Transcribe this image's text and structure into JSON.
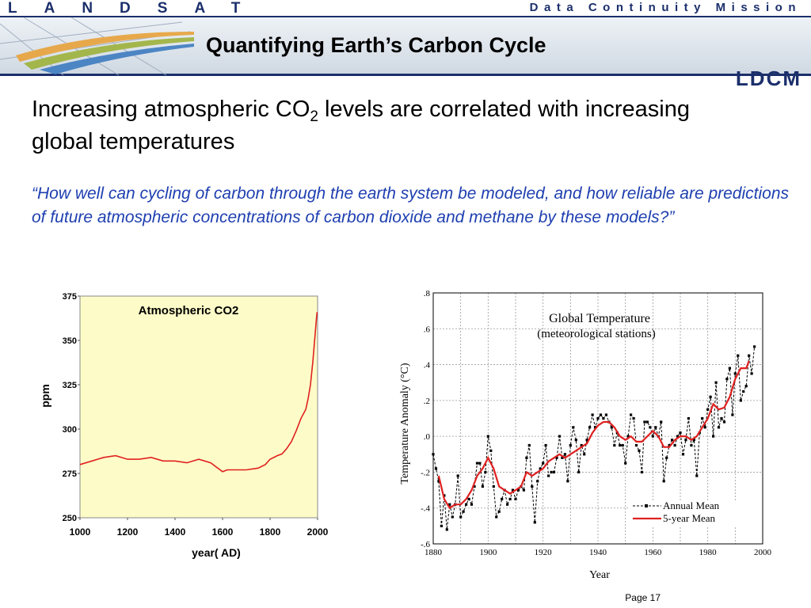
{
  "header": {
    "brand_left": "LANDSAT",
    "brand_right": "Data Continuity Mission",
    "title": "Quantifying Earth’s Carbon Cycle",
    "logo_text": "LDCM",
    "colors": {
      "navy": "#1b2f6b",
      "title_bar": "#dfe6ee",
      "swoosh_orange": "#e8a23a",
      "swoosh_green": "#9db23b",
      "swoosh_blue": "#3e7cc0"
    }
  },
  "body": {
    "headline_part1": "Increasing atmospheric CO",
    "headline_sub": "2",
    "headline_part2": " levels are correlated with increasing global temperatures",
    "quote": "“How well can cycling of carbon through the earth system be modeled, and how reliable are predictions of future atmospheric concentrations of carbon dioxide and methane by these models?”",
    "quote_color": "#1e3fb0"
  },
  "chart_data": [
    {
      "type": "line",
      "title": "Atmospheric CO2",
      "xlabel": "year( AD)",
      "ylabel": "ppm",
      "xlim": [
        1000,
        2000
      ],
      "ylim": [
        250,
        375
      ],
      "xticks": [
        "1000",
        "1200",
        "1400",
        "1600",
        "1800",
        "2000"
      ],
      "yticks": [
        "250",
        "275",
        "300",
        "325",
        "350",
        "375"
      ],
      "background": "#fdfcc8",
      "grid": false,
      "series": [
        {
          "color": "#e02020",
          "x": [
            1000,
            1050,
            1100,
            1150,
            1200,
            1250,
            1300,
            1350,
            1400,
            1450,
            1500,
            1550,
            1600,
            1620,
            1650,
            1700,
            1750,
            1780,
            1800,
            1830,
            1850,
            1870,
            1890,
            1910,
            1930,
            1950,
            1960,
            1970,
            1980,
            1985,
            1990,
            1995,
            1998
          ],
          "y": [
            280,
            282,
            284,
            285,
            283,
            283,
            284,
            282,
            282,
            281,
            283,
            281,
            276,
            277,
            277,
            277,
            278,
            280,
            283,
            285,
            286,
            289,
            293,
            299,
            306,
            311,
            317,
            325,
            338,
            346,
            354,
            362,
            366
          ]
        }
      ]
    },
    {
      "type": "line",
      "title": "Global Temperature",
      "subtitle": "(meteorological stations)",
      "xlabel": "Year",
      "ylabel": "Temperature Anomaly (°C)",
      "xlim": [
        1880,
        2000
      ],
      "ylim": [
        -0.6,
        0.8
      ],
      "xticks": [
        "1880",
        "1900",
        "1920",
        "1940",
        "1960",
        "1980",
        "2000"
      ],
      "yticks": [
        "-.6",
        "-.4",
        "-.2",
        ".0",
        ".2",
        ".4",
        ".6",
        ".8"
      ],
      "grid": true,
      "legend": "bottom-right",
      "series": [
        {
          "name": "Annual Mean",
          "style": "dashed-with-markers",
          "color": "#000000",
          "x": [
            1880,
            1881,
            1882,
            1883,
            1884,
            1885,
            1886,
            1887,
            1888,
            1889,
            1890,
            1891,
            1892,
            1893,
            1894,
            1895,
            1896,
            1897,
            1898,
            1899,
            1900,
            1901,
            1902,
            1903,
            1904,
            1905,
            1906,
            1907,
            1908,
            1909,
            1910,
            1911,
            1912,
            1913,
            1914,
            1915,
            1916,
            1917,
            1918,
            1919,
            1920,
            1921,
            1922,
            1923,
            1924,
            1925,
            1926,
            1927,
            1928,
            1929,
            1930,
            1931,
            1932,
            1933,
            1934,
            1935,
            1936,
            1937,
            1938,
            1939,
            1940,
            1941,
            1942,
            1943,
            1944,
            1945,
            1946,
            1947,
            1948,
            1949,
            1950,
            1951,
            1952,
            1953,
            1954,
            1955,
            1956,
            1957,
            1958,
            1959,
            1960,
            1961,
            1962,
            1963,
            1964,
            1965,
            1966,
            1967,
            1968,
            1969,
            1970,
            1971,
            1972,
            1973,
            1974,
            1975,
            1976,
            1977,
            1978,
            1979,
            1980,
            1981,
            1982,
            1983,
            1984,
            1985,
            1986,
            1987,
            1988,
            1989,
            1990,
            1991,
            1992,
            1993,
            1994,
            1995,
            1996,
            1997
          ],
          "y": [
            -0.1,
            -0.18,
            -0.25,
            -0.5,
            -0.33,
            -0.52,
            -0.38,
            -0.45,
            -0.38,
            -0.22,
            -0.45,
            -0.42,
            -0.38,
            -0.35,
            -0.38,
            -0.28,
            -0.15,
            -0.15,
            -0.28,
            -0.2,
            0.0,
            -0.08,
            -0.28,
            -0.45,
            -0.42,
            -0.35,
            -0.3,
            -0.38,
            -0.35,
            -0.3,
            -0.35,
            -0.3,
            -0.28,
            -0.3,
            -0.12,
            -0.05,
            -0.28,
            -0.48,
            -0.25,
            -0.18,
            -0.15,
            -0.05,
            -0.22,
            -0.2,
            -0.2,
            -0.12,
            0.0,
            -0.12,
            -0.1,
            -0.25,
            -0.05,
            0.05,
            -0.02,
            -0.2,
            -0.05,
            -0.1,
            -0.02,
            0.05,
            0.12,
            0.05,
            0.1,
            0.12,
            0.1,
            0.12,
            0.08,
            0.05,
            -0.05,
            0.02,
            -0.05,
            -0.05,
            -0.15,
            0.0,
            0.12,
            0.1,
            -0.05,
            -0.08,
            -0.2,
            0.08,
            0.08,
            0.05,
            0.0,
            0.05,
            0.0,
            0.08,
            -0.25,
            -0.12,
            -0.05,
            -0.02,
            -0.05,
            0.0,
            0.02,
            -0.1,
            -0.02,
            0.1,
            -0.05,
            -0.02,
            -0.22,
            0.02,
            0.1,
            0.05,
            0.15,
            0.22,
            0.0,
            0.3,
            0.05,
            0.1,
            0.08,
            0.32,
            0.38,
            0.12,
            0.35,
            0.45,
            0.2,
            0.25,
            0.28,
            0.45,
            0.35,
            0.5
          ]
        },
        {
          "name": "5-year Mean",
          "style": "solid",
          "color": "#e02020",
          "x": [
            1882,
            1884,
            1886,
            1888,
            1890,
            1892,
            1894,
            1896,
            1898,
            1900,
            1902,
            1904,
            1906,
            1908,
            1910,
            1912,
            1914,
            1916,
            1918,
            1920,
            1922,
            1924,
            1926,
            1928,
            1930,
            1932,
            1934,
            1936,
            1938,
            1940,
            1942,
            1944,
            1946,
            1948,
            1950,
            1952,
            1954,
            1956,
            1958,
            1960,
            1962,
            1964,
            1966,
            1968,
            1970,
            1972,
            1974,
            1976,
            1978,
            1980,
            1982,
            1984,
            1986,
            1988,
            1990,
            1992,
            1994,
            1995
          ],
          "y": [
            -0.22,
            -0.35,
            -0.4,
            -0.38,
            -0.38,
            -0.35,
            -0.3,
            -0.22,
            -0.18,
            -0.12,
            -0.18,
            -0.28,
            -0.3,
            -0.32,
            -0.3,
            -0.28,
            -0.2,
            -0.22,
            -0.2,
            -0.18,
            -0.14,
            -0.12,
            -0.1,
            -0.12,
            -0.1,
            -0.08,
            -0.06,
            -0.04,
            0.02,
            0.06,
            0.08,
            0.08,
            0.05,
            0.0,
            -0.02,
            0.0,
            -0.03,
            -0.03,
            0.0,
            0.03,
            0.0,
            -0.06,
            -0.06,
            -0.02,
            0.0,
            0.0,
            -0.02,
            0.0,
            0.05,
            0.1,
            0.18,
            0.15,
            0.16,
            0.22,
            0.32,
            0.38,
            0.38,
            0.42
          ]
        }
      ]
    }
  ],
  "footer": {
    "page_label": "Page",
    "page_number": "17"
  }
}
